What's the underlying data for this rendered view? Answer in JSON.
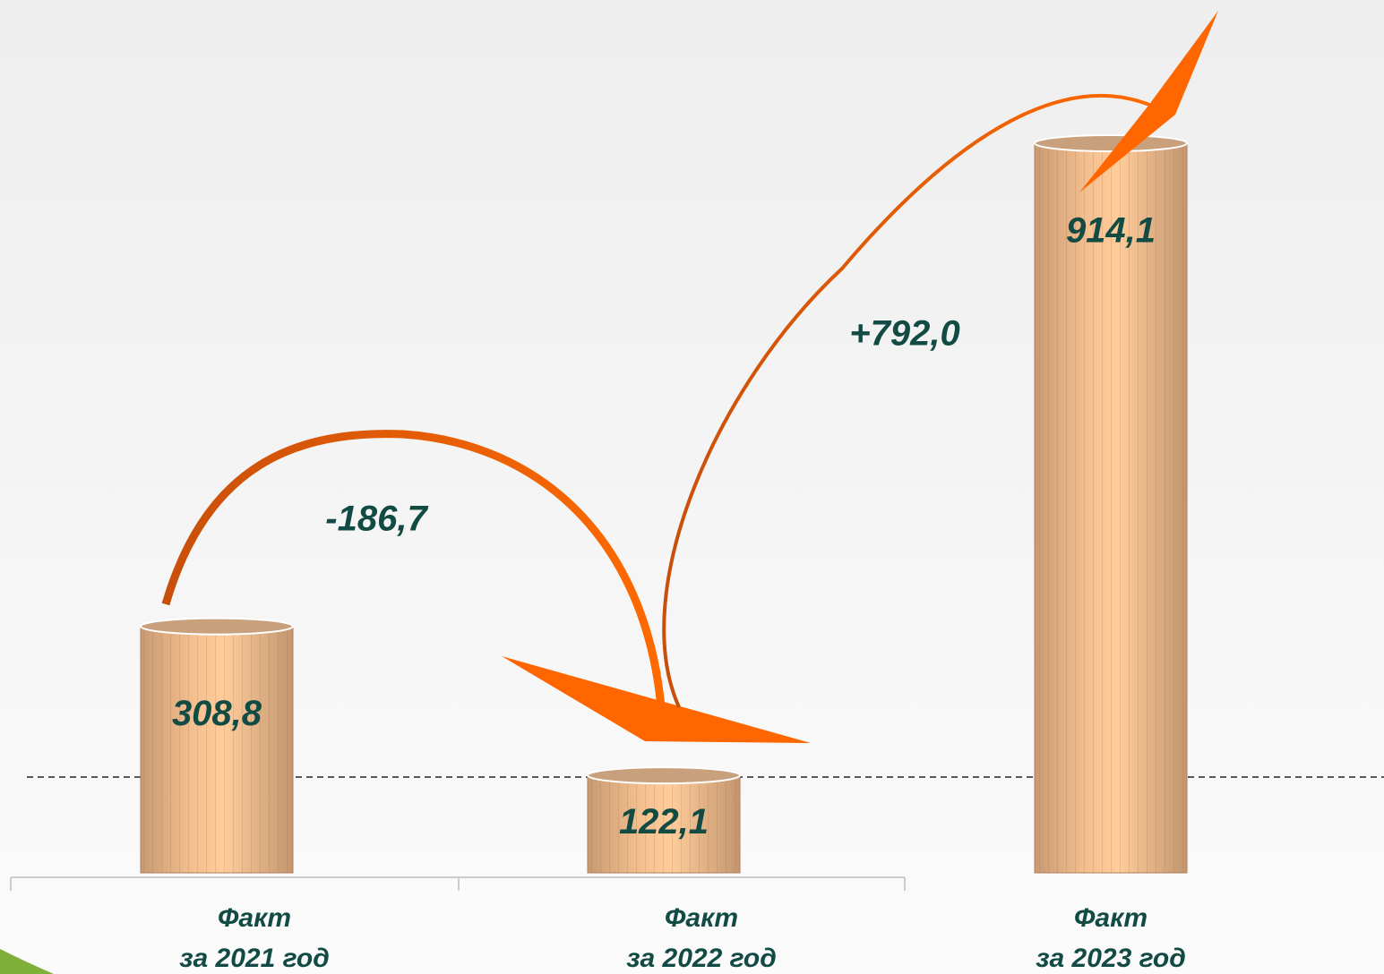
{
  "chart_data": {
    "type": "bar",
    "categories": [
      [
        "Факт",
        "за 2021 год"
      ],
      [
        "Факт",
        "за 2022 год"
      ],
      [
        "Факт",
        "за 2023 год"
      ]
    ],
    "values": [
      308.8,
      122.1,
      914.1
    ],
    "value_labels": [
      "308,8",
      "122,1",
      "914,1"
    ],
    "color": "#e9b488",
    "annotations": [
      {
        "text": "-186,7"
      },
      {
        "text": "+792,0"
      }
    ]
  }
}
